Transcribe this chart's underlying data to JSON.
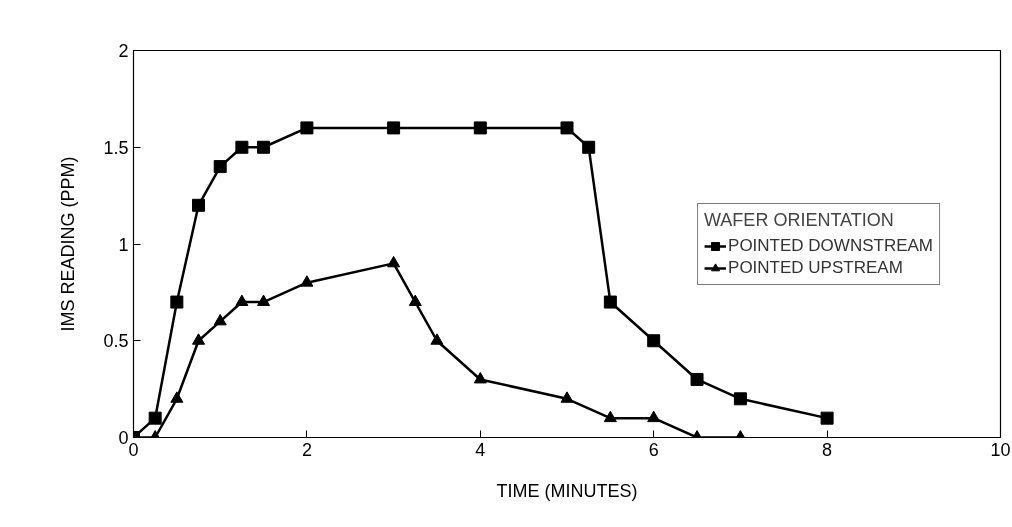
{
  "chart_data": {
    "type": "line",
    "xlabel": "TIME (MINUTES)",
    "ylabel": "IMS READING (PPM)",
    "legend_title": "WAFER ORIENTATION",
    "legend": "right",
    "grid": false,
    "line_style": "solid",
    "xlim": [
      0,
      10
    ],
    "xticks": [
      0,
      2,
      4,
      6,
      8,
      10
    ],
    "ylim": [
      0,
      2
    ],
    "yticks": [
      0,
      0.5,
      1,
      1.5,
      2
    ],
    "series": [
      {
        "name": "POINTED DOWNSTREAM",
        "color": "#000000",
        "marker": "square",
        "x": [
          0,
          0.25,
          0.5,
          0.75,
          1,
          1.25,
          1.5,
          2,
          3,
          4,
          5,
          5.25,
          5.5,
          6,
          6.5,
          7,
          8
        ],
        "values": [
          0,
          0.1,
          0.7,
          1.2,
          1.4,
          1.5,
          1.5,
          1.6,
          1.6,
          1.6,
          1.6,
          1.5,
          0.7,
          0.5,
          0.3,
          0.2,
          0.1
        ]
      },
      {
        "name": "POINTED UPSTREAM",
        "color": "#000000",
        "marker": "triangle",
        "x": [
          0,
          0.25,
          0.5,
          0.75,
          1,
          1.25,
          1.5,
          2,
          3,
          3.25,
          3.5,
          4,
          5,
          5.5,
          6,
          6.5,
          7
        ],
        "values": [
          0,
          0,
          0.2,
          0.5,
          0.6,
          0.7,
          0.7,
          0.8,
          0.9,
          0.7,
          0.5,
          0.3,
          0.2,
          0.1,
          0.1,
          0,
          0
        ]
      }
    ]
  }
}
